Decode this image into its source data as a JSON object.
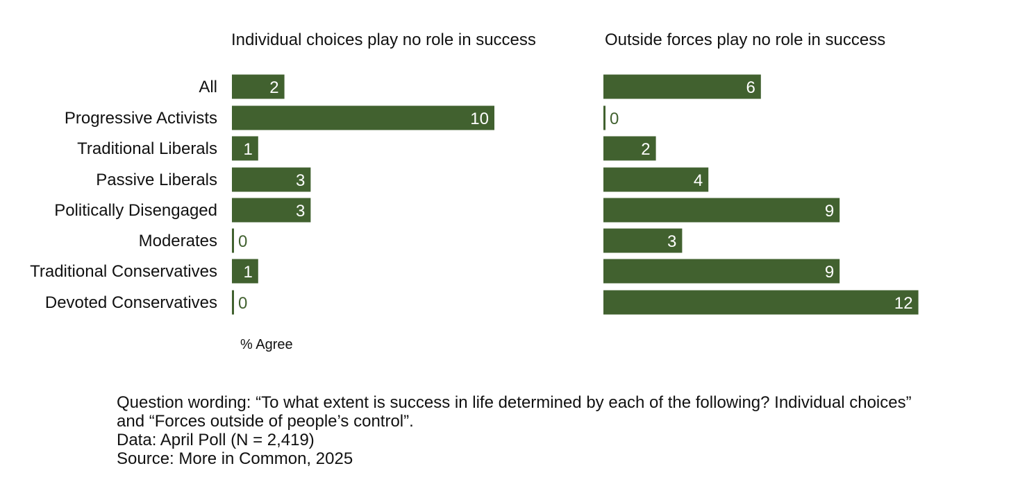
{
  "chart_data": [
    {
      "type": "bar",
      "orientation": "horizontal",
      "title": "Individual choices play no role in success",
      "xlabel": "% Agree",
      "categories": [
        "All",
        "Progressive Activists",
        "Traditional Liberals",
        "Passive Liberals",
        "Politically Disengaged",
        "Moderates",
        "Traditional Conservatives",
        "Devoted Conservatives"
      ],
      "values": [
        2,
        10,
        1,
        3,
        3,
        0,
        1,
        0
      ],
      "grid": false
    },
    {
      "type": "bar",
      "orientation": "horizontal",
      "title": "Outside forces play no role in success",
      "categories": [
        "All",
        "Progressive Activists",
        "Traditional Liberals",
        "Passive Liberals",
        "Politically Disengaged",
        "Moderates",
        "Traditional Conservatives",
        "Devoted Conservatives"
      ],
      "values": [
        6,
        0,
        2,
        4,
        9,
        3,
        9,
        12
      ],
      "grid": false
    }
  ],
  "colors": {
    "bar": "#41612f",
    "bar_label_inside": "#ffffff",
    "bar_label_outside": "#41612f"
  },
  "notes": {
    "question": "Question wording: “To what extent is success in life determined by each of the following? Individual choices” and “Forces outside of people’s control”.",
    "data": "Data: April Poll (N = 2,419)",
    "source": "Source: More in Common, 2025"
  }
}
